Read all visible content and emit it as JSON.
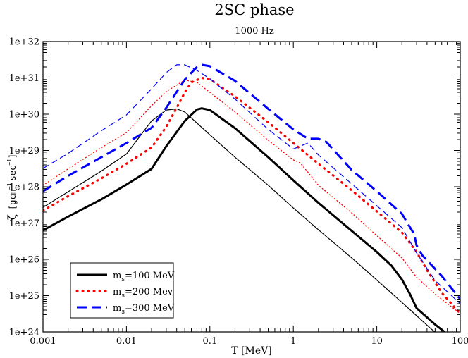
{
  "chart_data": {
    "type": "line",
    "title": "2SC phase",
    "subtitle": "1000 Hz",
    "xlabel": "T [MeV]",
    "ylabel_symbol": "ζ",
    "ylabel_units": "[gcm",
    "ylabel_exp1": "−1",
    "ylabel_sec": "sec",
    "ylabel_exp2": "−1",
    "ylabel_close": "]",
    "xscale": "log",
    "yscale": "log",
    "xlim": [
      0.001,
      100
    ],
    "ylim": [
      1e+24,
      1e+32
    ],
    "x_ticks": [
      {
        "value": 0.001,
        "label": "0.001"
      },
      {
        "value": 0.01,
        "label": "0.01"
      },
      {
        "value": 0.1,
        "label": "0.1"
      },
      {
        "value": 1,
        "label": "1"
      },
      {
        "value": 10,
        "label": "10"
      },
      {
        "value": 100,
        "label": "100"
      }
    ],
    "y_ticks": [
      {
        "value": 1e+24,
        "label": "1e+24"
      },
      {
        "value": 1e+25,
        "label": "1e+25"
      },
      {
        "value": 1e+26,
        "label": "1e+26"
      },
      {
        "value": 1e+27,
        "label": "1e+27"
      },
      {
        "value": 1e+28,
        "label": "1e+28"
      },
      {
        "value": 1e+29,
        "label": "1e+29"
      },
      {
        "value": 1e+30,
        "label": "1e+30"
      },
      {
        "value": 1e+31,
        "label": "1e+31"
      },
      {
        "value": 1e+32,
        "label": "1e+32"
      }
    ],
    "legend": {
      "position": "bottom-left",
      "entries": [
        {
          "prefix": "m",
          "sub": "s",
          "text": "=100 MeV",
          "color": "#000000",
          "style": "solid"
        },
        {
          "prefix": "m",
          "sub": "s",
          "text": "=200 Mev",
          "color": "#ff0000",
          "style": "dotted"
        },
        {
          "prefix": "m",
          "sub": "s",
          "text": "=300 MeV",
          "color": "#0000ff",
          "style": "dashed"
        }
      ]
    },
    "series": [
      {
        "name": "ms=100 MeV (thick)",
        "color": "#000000",
        "style": "solid",
        "weight": "thick",
        "points": [
          [
            0.001,
            6.3e+26
          ],
          [
            0.002,
            1.5e+27
          ],
          [
            0.005,
            4.5e+27
          ],
          [
            0.01,
            1.15e+28
          ],
          [
            0.02,
            3.1e+28
          ],
          [
            0.03,
            1.3e+29
          ],
          [
            0.05,
            6.5e+29
          ],
          [
            0.07,
            1.35e+30
          ],
          [
            0.08,
            1.45e+30
          ],
          [
            0.1,
            1.3e+30
          ],
          [
            0.2,
            4.1e+29
          ],
          [
            0.5,
            6.5e+28
          ],
          [
            1,
            1.5e+28
          ],
          [
            2,
            3.6e+27
          ],
          [
            5,
            6.1e+26
          ],
          [
            10,
            1.6e+26
          ],
          [
            15,
            6.7e+25
          ],
          [
            20,
            2.8e+25
          ],
          [
            25,
            1.1e+25
          ],
          [
            30,
            4.5e+24
          ],
          [
            50,
            1.6e+24
          ],
          [
            65,
            1e+24
          ]
        ]
      },
      {
        "name": "ms=100 MeV (thin)",
        "color": "#000000",
        "style": "solid",
        "weight": "thin",
        "points": [
          [
            0.001,
            2.7e+27
          ],
          [
            0.005,
            2.7e+28
          ],
          [
            0.01,
            8e+28
          ],
          [
            0.02,
            6.5e+29
          ],
          [
            0.03,
            1.3e+30
          ],
          [
            0.04,
            1.4e+30
          ],
          [
            0.05,
            1.15e+30
          ],
          [
            0.1,
            2.7e+29
          ],
          [
            0.2,
            6.5e+28
          ],
          [
            0.5,
            1.1e+28
          ],
          [
            1,
            2.6e+27
          ],
          [
            2,
            6.5e+26
          ],
          [
            5,
            1.1e+26
          ],
          [
            10,
            2.7e+25
          ],
          [
            20,
            6.5e+24
          ],
          [
            30,
            2.8e+24
          ],
          [
            45,
            1.2e+24
          ],
          [
            50,
            1e+24
          ]
        ]
      },
      {
        "name": "ms=200 Mev (thick)",
        "color": "#ff0000",
        "style": "dotted",
        "weight": "thick",
        "points": [
          [
            0.001,
            2.2e+27
          ],
          [
            0.002,
            5.5e+27
          ],
          [
            0.005,
            1.7e+28
          ],
          [
            0.01,
            4.3e+28
          ],
          [
            0.02,
            1.2e+29
          ],
          [
            0.03,
            4.5e+29
          ],
          [
            0.04,
            1.5e+30
          ],
          [
            0.05,
            4e+30
          ],
          [
            0.06,
            7.5e+30
          ],
          [
            0.08,
            1e+31
          ],
          [
            0.1,
            9.2e+30
          ],
          [
            0.2,
            3.1e+30
          ],
          [
            0.5,
            6e+29
          ],
          [
            1,
            1.6e+29
          ],
          [
            2,
            4.3e+28
          ],
          [
            5,
            8e+27
          ],
          [
            10,
            2.1e+27
          ],
          [
            20,
            5.5e+26
          ],
          [
            30,
            1.6e+26
          ],
          [
            40,
            5e+25
          ],
          [
            60,
            1.2e+25
          ],
          [
            100,
            3.2e+24
          ]
        ]
      },
      {
        "name": "ms=200 Mev (thin)",
        "color": "#ff0000",
        "style": "dotted",
        "weight": "thin",
        "points": [
          [
            0.001,
            1.1e+28
          ],
          [
            0.002,
            3.1e+28
          ],
          [
            0.005,
            1.2e+29
          ],
          [
            0.01,
            3.1e+29
          ],
          [
            0.02,
            1.7e+30
          ],
          [
            0.03,
            4.2e+30
          ],
          [
            0.05,
            8.7e+30
          ],
          [
            0.07,
            7.5e+30
          ],
          [
            0.1,
            4e+30
          ],
          [
            0.2,
            1.15e+30
          ],
          [
            0.5,
            1.9e+29
          ],
          [
            1,
            5.5e+28
          ],
          [
            1.2,
            4.6e+28
          ],
          [
            1.5,
            2.5e+28
          ],
          [
            2,
            1.1e+28
          ],
          [
            5,
            1.9e+27
          ],
          [
            10,
            4.5e+26
          ],
          [
            20,
            1.1e+26
          ],
          [
            30,
            3.2e+25
          ],
          [
            50,
            1.1e+25
          ],
          [
            100,
            3.2e+24
          ]
        ]
      },
      {
        "name": "ms=300 MeV (thick)",
        "color": "#0000ff",
        "style": "dashed",
        "weight": "thick",
        "points": [
          [
            0.001,
            7.5e+27
          ],
          [
            0.002,
            2e+28
          ],
          [
            0.005,
            6.5e+28
          ],
          [
            0.01,
            1.6e+29
          ],
          [
            0.02,
            4.2e+29
          ],
          [
            0.03,
            1.5e+30
          ],
          [
            0.05,
            9e+30
          ],
          [
            0.07,
            2e+31
          ],
          [
            0.08,
            2.3e+31
          ],
          [
            0.1,
            2.1e+31
          ],
          [
            0.2,
            8.3e+30
          ],
          [
            0.5,
            1.4e+30
          ],
          [
            1,
            3.8e+29
          ],
          [
            1.5,
            2.1e+29
          ],
          [
            2,
            2.1e+29
          ],
          [
            2.5,
            1.7e+29
          ],
          [
            5,
            2.9e+28
          ],
          [
            10,
            7.5e+27
          ],
          [
            20,
            1.8e+27
          ],
          [
            28,
            5e+26
          ],
          [
            30,
            2.4e+26
          ],
          [
            35,
            1.3e+26
          ],
          [
            60,
            3.5e+25
          ],
          [
            100,
            8e+24
          ]
        ]
      },
      {
        "name": "ms=300 MeV (thin)",
        "color": "#0000ff",
        "style": "dashed",
        "weight": "thin",
        "points": [
          [
            0.001,
            3.2e+28
          ],
          [
            0.002,
            8.3e+28
          ],
          [
            0.005,
            3.5e+29
          ],
          [
            0.01,
            9.5e+29
          ],
          [
            0.02,
            5e+30
          ],
          [
            0.03,
            1.4e+31
          ],
          [
            0.04,
            2.3e+31
          ],
          [
            0.05,
            2.3e+31
          ],
          [
            0.07,
            1.6e+31
          ],
          [
            0.1,
            9.5e+30
          ],
          [
            0.2,
            2.6e+30
          ],
          [
            0.5,
            3.8e+29
          ],
          [
            1,
            1.1e+29
          ],
          [
            1.5,
            1.6e+29
          ],
          [
            2,
            7.5e+28
          ],
          [
            5,
            1.2e+28
          ],
          [
            10,
            3e+27
          ],
          [
            20,
            7.5e+26
          ],
          [
            30,
            1.5e+26
          ],
          [
            50,
            2.6e+25
          ],
          [
            100,
            6e+24
          ]
        ]
      }
    ]
  }
}
